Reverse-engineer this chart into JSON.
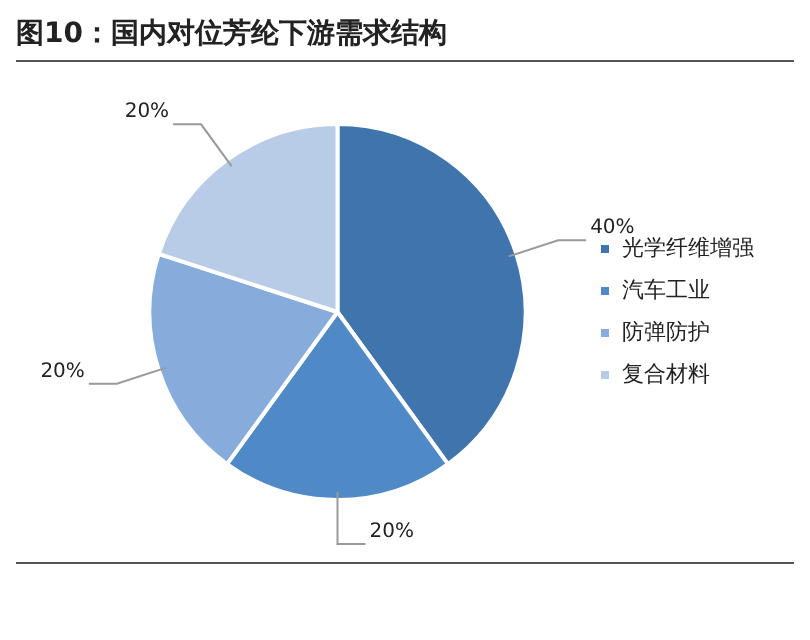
{
  "chart_data": {
    "type": "pie",
    "title": "图10：国内对位芳纶下游需求结构",
    "categories": [
      "光学纤维增强",
      "汽车工业",
      "防弹防护",
      "复合材料"
    ],
    "values": [
      40,
      20,
      20,
      20
    ],
    "colors": [
      "#3f74ad",
      "#4f89c6",
      "#86acdb",
      "#b8cce8"
    ],
    "value_labels": [
      "40%",
      "20%",
      "20%",
      "20%"
    ],
    "legend": "right"
  }
}
